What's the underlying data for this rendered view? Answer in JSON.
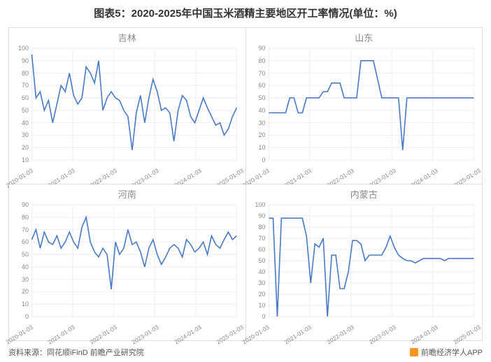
{
  "title": "图表5：2020-2025年中国玉米酒精主要地区开工率情况(单位：%)",
  "footer": {
    "source": "资料来源：同花顺iFinD 前瞻产业研究院",
    "brand": "前瞻经济学人APP"
  },
  "colors": {
    "line": "#4a7bc8",
    "grid": "#eeeeee",
    "axis": "#cccccc",
    "text": "#888888",
    "title": "#333333",
    "bg": "#ffffff"
  },
  "x_labels": [
    "2020-01-03",
    "2021-01-03",
    "2022-01-03",
    "2023-01-03",
    "2024-01-03",
    "2025-01-03"
  ],
  "panels": [
    {
      "title": "吉林",
      "ylim": [
        10,
        100
      ],
      "ytick_step": 10,
      "data": [
        95,
        60,
        65,
        50,
        58,
        40,
        55,
        70,
        65,
        80,
        62,
        55,
        60,
        85,
        80,
        72,
        90,
        50,
        60,
        65,
        60,
        58,
        50,
        45,
        18,
        48,
        62,
        40,
        60,
        75,
        65,
        50,
        52,
        48,
        25,
        50,
        62,
        58,
        45,
        40,
        50,
        60,
        52,
        45,
        38,
        40,
        30,
        35,
        45,
        52
      ]
    },
    {
      "title": "山东",
      "ylim": [
        0,
        90
      ],
      "ytick_step": 10,
      "data": [
        38,
        38,
        38,
        38,
        38,
        50,
        50,
        38,
        38,
        50,
        50,
        50,
        50,
        55,
        55,
        62,
        62,
        62,
        50,
        50,
        50,
        50,
        80,
        80,
        80,
        80,
        65,
        50,
        50,
        50,
        50,
        50,
        8,
        50,
        50,
        50,
        50,
        50,
        50,
        50,
        50,
        50,
        50,
        50,
        50,
        50,
        50,
        50,
        50,
        50
      ]
    },
    {
      "title": "河南",
      "ylim": [
        0,
        90
      ],
      "ytick_step": 10,
      "data": [
        62,
        70,
        55,
        68,
        60,
        58,
        65,
        55,
        60,
        68,
        60,
        55,
        72,
        80,
        60,
        52,
        48,
        55,
        50,
        22,
        60,
        50,
        55,
        70,
        58,
        60,
        52,
        40,
        55,
        62,
        50,
        42,
        48,
        55,
        58,
        55,
        48,
        62,
        58,
        52,
        55,
        60,
        50,
        65,
        58,
        55,
        62,
        68,
        62,
        65
      ]
    },
    {
      "title": "内蒙古",
      "ylim": [
        0,
        100
      ],
      "ytick_step": 10,
      "data": [
        88,
        88,
        0,
        88,
        88,
        88,
        88,
        88,
        88,
        72,
        30,
        65,
        62,
        70,
        0,
        55,
        55,
        25,
        25,
        40,
        68,
        68,
        65,
        50,
        55,
        55,
        55,
        55,
        62,
        72,
        62,
        55,
        52,
        50,
        50,
        48,
        50,
        52,
        52,
        52,
        52,
        52,
        50,
        52,
        52,
        52,
        52,
        52,
        52,
        52
      ]
    }
  ]
}
